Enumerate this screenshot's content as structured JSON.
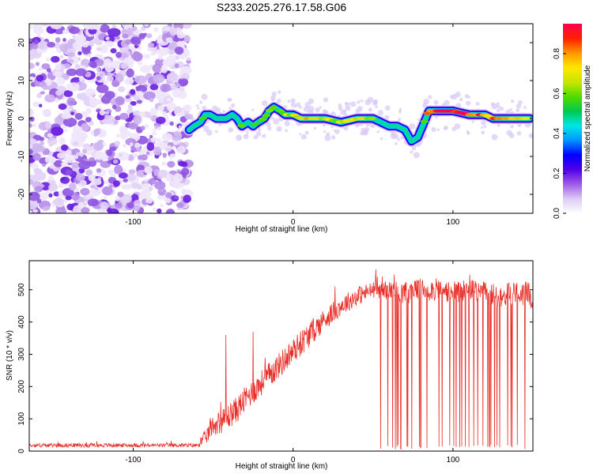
{
  "title": "S233.2025.276.17.58.G06",
  "chart_data": [
    {
      "type": "heatmap",
      "name": "spectrogram",
      "xlabel": "Height of straight line (km)",
      "ylabel": "Frequency (Hz)",
      "xlim": [
        -165,
        150
      ],
      "ylim": [
        -25,
        25
      ],
      "xticks": [
        -100,
        0,
        100
      ],
      "yticks": [
        -20,
        -10,
        0,
        10,
        20
      ],
      "noise_region_x": [
        -165,
        -65
      ],
      "ridge": {
        "x": [
          -65,
          -62,
          -58,
          -55,
          -52,
          -48,
          -45,
          -42,
          -38,
          -35,
          -32,
          -28,
          -25,
          -22,
          -18,
          -15,
          -12,
          -8,
          -5,
          0,
          5,
          10,
          20,
          30,
          40,
          45,
          50,
          55,
          60,
          65,
          70,
          74,
          78,
          82,
          85,
          90,
          100,
          110,
          115,
          120,
          125,
          130,
          140,
          148
        ],
        "y": [
          -3,
          -2,
          -1,
          1,
          1,
          0,
          0,
          0,
          1,
          0,
          -2,
          -1,
          -2,
          -1,
          0,
          2,
          3,
          2,
          1,
          1,
          0,
          0,
          0,
          -1,
          0,
          0,
          0,
          -1,
          -2,
          -2,
          -3,
          -6,
          -5,
          -1,
          2,
          2,
          2,
          1,
          1,
          1,
          0,
          0,
          0,
          0
        ],
        "amplitude": [
          0.35,
          0.45,
          0.5,
          0.55,
          0.55,
          0.45,
          0.5,
          0.45,
          0.5,
          0.55,
          0.6,
          0.5,
          0.55,
          0.5,
          0.55,
          0.6,
          0.6,
          0.6,
          0.65,
          0.7,
          0.75,
          0.8,
          0.7,
          0.65,
          0.75,
          0.7,
          0.55,
          0.5,
          0.45,
          0.4,
          0.4,
          0.45,
          0.45,
          0.6,
          0.9,
          0.95,
          0.95,
          0.9,
          0.85,
          0.8,
          0.8,
          0.85,
          0.75,
          0.7
        ]
      },
      "colorbar": {
        "label": "Normalized spectral amplitude",
        "range": [
          0,
          0.95
        ],
        "ticks": [
          "0.0",
          "0.2",
          "0.4",
          "0.6",
          "0.8"
        ],
        "colors": [
          "#ffffff",
          "#dccbf5",
          "#a05ae6",
          "#5000e6",
          "#0000ff",
          "#0096ff",
          "#00e6e6",
          "#00c850",
          "#50dc00",
          "#c8e600",
          "#ffe600",
          "#ff9600",
          "#ff1e00",
          "#ff0050"
        ]
      }
    },
    {
      "type": "line",
      "name": "snr",
      "xlabel": "Height of straight line (km)",
      "ylabel": "SNR (10 * v/v)",
      "xlim": [
        -165,
        150
      ],
      "ylim": [
        0,
        590
      ],
      "xticks": [
        -100,
        0,
        100
      ],
      "yticks": [
        0,
        100,
        200,
        300,
        400,
        500
      ],
      "color": "#e8302a",
      "envelope": {
        "x": [
          -165,
          -60,
          -55,
          -50,
          -45,
          -40,
          -35,
          -30,
          -20,
          -10,
          0,
          10,
          20,
          30,
          40,
          50,
          60,
          70,
          80,
          90,
          100,
          110,
          120,
          130,
          140,
          150
        ],
        "y": [
          18,
          18,
          40,
          80,
          90,
          110,
          130,
          160,
          210,
          260,
          310,
          360,
          410,
          450,
          480,
          500,
          500,
          490,
          500,
          500,
          490,
          500,
          490,
          480,
          490,
          480
        ],
        "noise": [
          6,
          6,
          25,
          30,
          35,
          40,
          40,
          40,
          40,
          40,
          40,
          40,
          35,
          30,
          30,
          25,
          30,
          35,
          35,
          35,
          35,
          35,
          35,
          35,
          40,
          40
        ]
      },
      "spikes_up": [
        [
          -42,
          360
        ],
        [
          -25,
          370
        ]
      ],
      "dropouts": {
        "x_range": [
          53,
          148
        ],
        "count": 40,
        "floor": [
          5,
          20
        ]
      }
    }
  ]
}
